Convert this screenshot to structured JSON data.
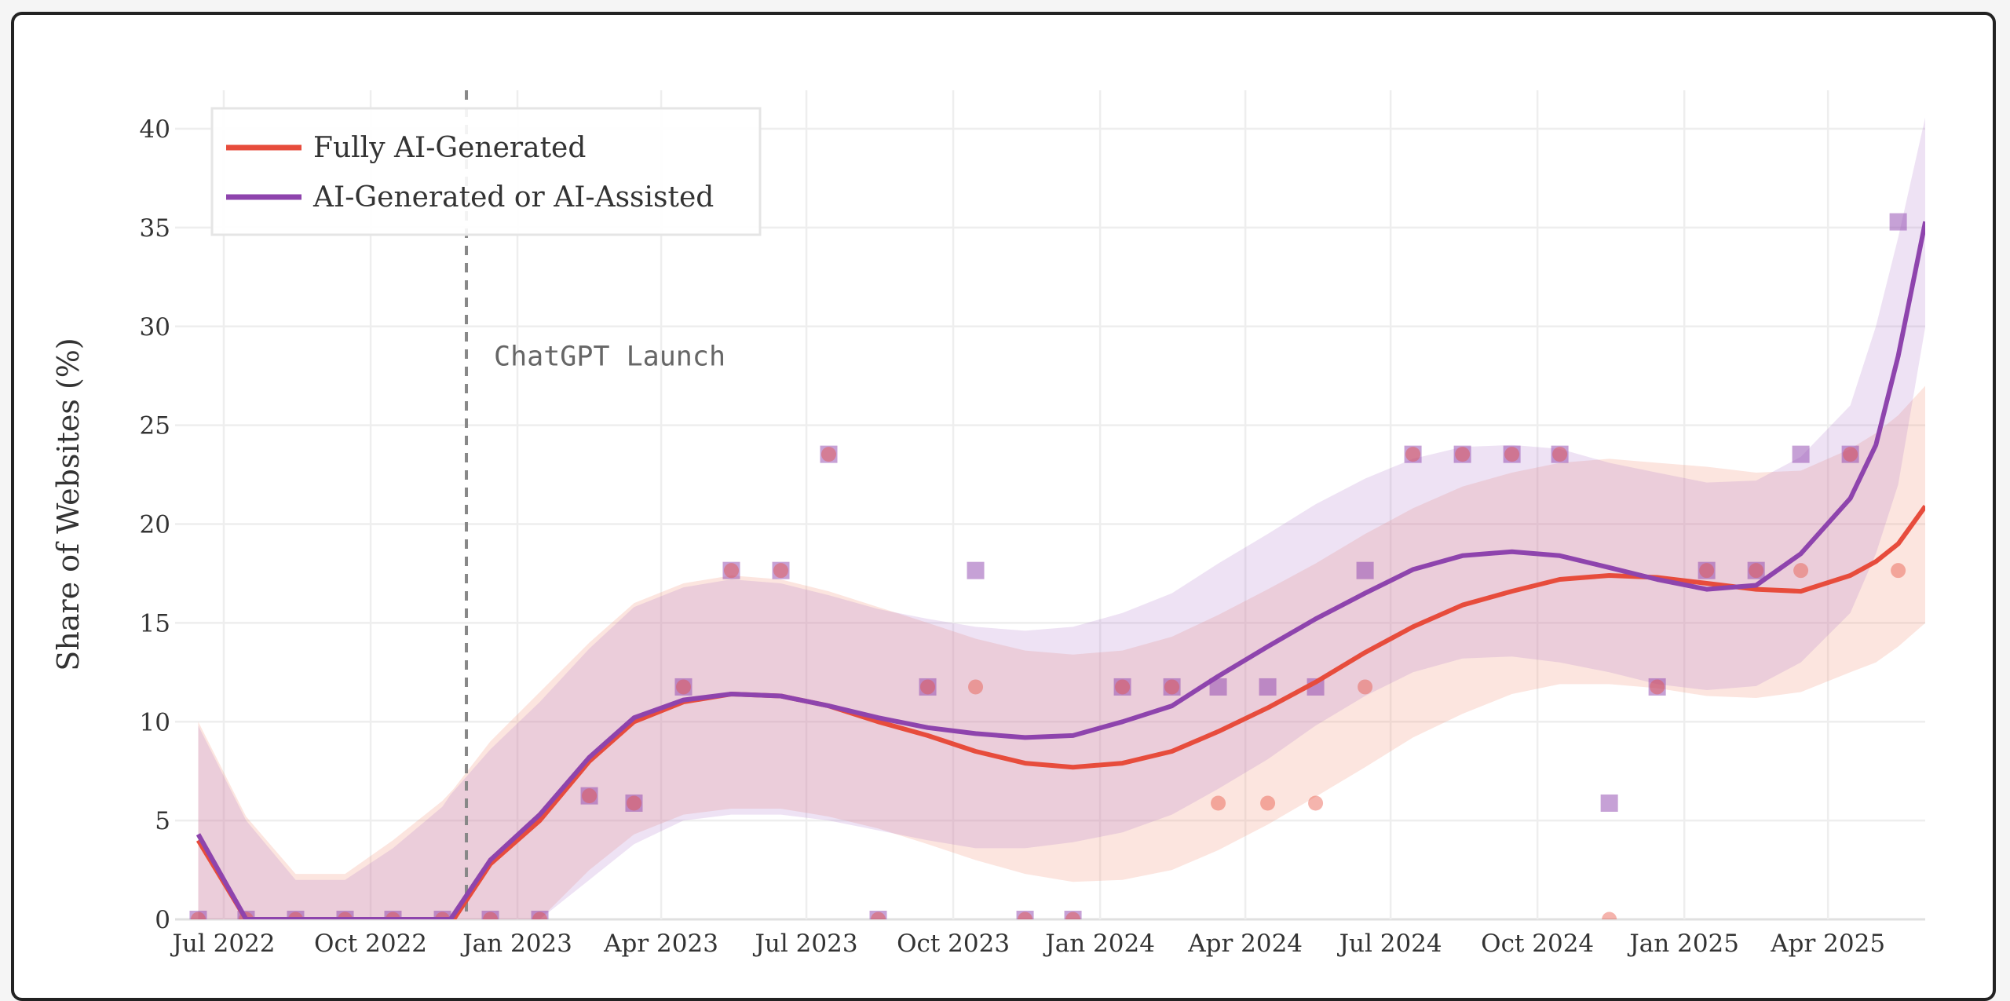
{
  "chart_data": {
    "type": "line",
    "title": "",
    "xlabel": "",
    "ylabel": "Share of Websites (%)",
    "ylim": [
      0,
      40
    ],
    "yticks": [
      0,
      5,
      10,
      15,
      20,
      25,
      30,
      35,
      40
    ],
    "xlim": [
      "2022-06-08",
      "2025-06-25"
    ],
    "xticks": [
      {
        "date": "2022-07-01",
        "label": "Jul 2022"
      },
      {
        "date": "2022-10-01",
        "label": "Oct 2022"
      },
      {
        "date": "2023-01-01",
        "label": "Jan 2023"
      },
      {
        "date": "2023-04-01",
        "label": "Apr 2023"
      },
      {
        "date": "2023-07-01",
        "label": "Jul 2023"
      },
      {
        "date": "2023-10-01",
        "label": "Oct 2023"
      },
      {
        "date": "2024-01-01",
        "label": "Jan 2024"
      },
      {
        "date": "2024-04-01",
        "label": "Apr 2024"
      },
      {
        "date": "2024-07-01",
        "label": "Jul 2024"
      },
      {
        "date": "2024-10-01",
        "label": "Oct 2024"
      },
      {
        "date": "2025-01-01",
        "label": "Jan 2025"
      },
      {
        "date": "2025-04-01",
        "label": "Apr 2025"
      }
    ],
    "grid": true,
    "legend": {
      "placement": "top-left"
    },
    "annotations": [
      {
        "type": "vline",
        "date": "2022-11-30",
        "label": "ChatGPT Launch",
        "label_y": 28.5,
        "color": "#888888",
        "style": "dashed"
      }
    ],
    "x": [
      "2022-06-15",
      "2022-07-15",
      "2022-08-15",
      "2022-09-15",
      "2022-10-15",
      "2022-11-15",
      "2022-12-15",
      "2023-01-15",
      "2023-02-15",
      "2023-03-15",
      "2023-04-15",
      "2023-05-15",
      "2023-06-15",
      "2023-07-15",
      "2023-08-15",
      "2023-09-15",
      "2023-10-15",
      "2023-11-15",
      "2023-12-15",
      "2024-01-15",
      "2024-02-15",
      "2024-03-15",
      "2024-04-15",
      "2024-05-15",
      "2024-06-15",
      "2024-07-15",
      "2024-08-15",
      "2024-09-15",
      "2024-10-15",
      "2024-11-15",
      "2024-12-15",
      "2025-01-15",
      "2025-02-15",
      "2025-03-15",
      "2025-04-15",
      "2025-05-15"
    ],
    "series": [
      {
        "name": "Fully AI-Generated",
        "color": "#e74c3c",
        "marker": "circle",
        "observed": [
          0,
          0,
          0,
          0,
          0,
          0,
          0,
          0,
          6.25,
          5.88,
          11.76,
          17.65,
          17.65,
          23.53,
          0,
          11.76,
          11.76,
          0,
          0,
          11.76,
          11.76,
          5.88,
          5.88,
          5.88,
          11.76,
          23.53,
          23.53,
          23.53,
          23.53,
          0,
          11.76,
          17.65,
          17.65,
          17.65,
          23.53,
          17.65
        ],
        "fit_x": [
          "2022-06-15",
          "2022-07-15",
          "2022-08-15",
          "2022-09-15",
          "2022-10-15",
          "2022-11-15",
          "2022-11-22",
          "2022-12-15",
          "2023-01-15",
          "2023-02-15",
          "2023-03-15",
          "2023-04-15",
          "2023-05-15",
          "2023-06-15",
          "2023-07-15",
          "2023-08-15",
          "2023-09-15",
          "2023-10-15",
          "2023-11-15",
          "2023-12-15",
          "2024-01-15",
          "2024-02-15",
          "2024-03-15",
          "2024-04-15",
          "2024-05-15",
          "2024-06-15",
          "2024-07-15",
          "2024-08-15",
          "2024-09-15",
          "2024-10-15",
          "2024-11-15",
          "2024-12-15",
          "2025-01-15",
          "2025-02-15",
          "2025-03-15",
          "2025-04-15",
          "2025-05-01",
          "2025-05-15",
          "2025-06-01"
        ],
        "fit": [
          4.0,
          0,
          0,
          0,
          0,
          0,
          0,
          2.8,
          5.0,
          8.0,
          10.0,
          11.0,
          11.4,
          11.3,
          10.8,
          10.0,
          9.3,
          8.5,
          7.9,
          7.7,
          7.9,
          8.5,
          9.5,
          10.7,
          12.0,
          13.5,
          14.8,
          15.9,
          16.6,
          17.2,
          17.4,
          17.3,
          17.0,
          16.7,
          16.6,
          17.4,
          18.1,
          19.0,
          20.9
        ],
        "ci_lower": [
          0,
          0,
          0,
          0,
          0,
          0,
          0,
          0,
          0,
          2.5,
          4.3,
          5.3,
          5.6,
          5.6,
          5.2,
          4.6,
          3.8,
          3.0,
          2.3,
          1.9,
          2.0,
          2.5,
          3.5,
          4.8,
          6.2,
          7.7,
          9.2,
          10.4,
          11.4,
          11.9,
          11.9,
          11.7,
          11.3,
          11.2,
          11.5,
          12.5,
          13.0,
          13.8,
          15.0
        ],
        "ci_upper": [
          10.0,
          5.2,
          2.3,
          2.3,
          4.0,
          6.0,
          6.6,
          9.0,
          11.5,
          14.0,
          16.0,
          17.0,
          17.4,
          17.2,
          16.6,
          15.8,
          15.0,
          14.2,
          13.6,
          13.4,
          13.6,
          14.3,
          15.4,
          16.7,
          18.0,
          19.5,
          20.8,
          21.9,
          22.6,
          23.1,
          23.3,
          23.1,
          22.9,
          22.6,
          22.7,
          23.8,
          24.6,
          25.5,
          27.0
        ]
      },
      {
        "name": "AI-Generated or AI-Assisted",
        "color": "#8e44ad",
        "marker": "square",
        "observed": [
          0,
          0,
          0,
          0,
          0,
          0,
          0,
          0,
          6.25,
          5.88,
          11.76,
          17.65,
          17.65,
          23.53,
          0,
          11.76,
          17.65,
          0,
          0,
          11.76,
          11.76,
          11.76,
          11.76,
          11.76,
          17.65,
          23.53,
          23.53,
          23.53,
          23.53,
          5.88,
          11.76,
          17.65,
          17.65,
          23.53,
          23.53,
          35.29
        ],
        "fit_x": [
          "2022-06-15",
          "2022-07-15",
          "2022-08-15",
          "2022-09-15",
          "2022-10-15",
          "2022-11-15",
          "2022-11-20",
          "2022-12-15",
          "2023-01-15",
          "2023-02-15",
          "2023-03-15",
          "2023-04-15",
          "2023-05-15",
          "2023-06-15",
          "2023-07-15",
          "2023-08-15",
          "2023-09-15",
          "2023-10-15",
          "2023-11-15",
          "2023-12-15",
          "2024-01-15",
          "2024-02-15",
          "2024-03-15",
          "2024-04-15",
          "2024-05-15",
          "2024-06-15",
          "2024-07-15",
          "2024-08-15",
          "2024-09-15",
          "2024-10-15",
          "2024-11-15",
          "2024-12-15",
          "2025-01-15",
          "2025-02-15",
          "2025-03-15",
          "2025-04-15",
          "2025-05-01",
          "2025-05-15",
          "2025-06-01"
        ],
        "fit": [
          4.3,
          0,
          0,
          0,
          0,
          0,
          0,
          3.0,
          5.3,
          8.2,
          10.2,
          11.1,
          11.4,
          11.3,
          10.8,
          10.2,
          9.7,
          9.4,
          9.2,
          9.3,
          10.0,
          10.8,
          12.3,
          13.8,
          15.2,
          16.5,
          17.7,
          18.4,
          18.6,
          18.4,
          17.8,
          17.2,
          16.7,
          16.9,
          18.5,
          21.3,
          24.0,
          28.5,
          35.3
        ],
        "ci_lower": [
          0,
          0,
          0,
          0,
          0,
          0,
          0,
          0,
          0,
          2.0,
          3.8,
          5.0,
          5.3,
          5.3,
          5.0,
          4.5,
          4.0,
          3.6,
          3.6,
          3.9,
          4.4,
          5.3,
          6.6,
          8.1,
          9.8,
          11.3,
          12.5,
          13.2,
          13.3,
          13.0,
          12.5,
          11.9,
          11.6,
          11.8,
          13.0,
          15.5,
          18.5,
          22.0,
          30.0
        ],
        "ci_upper": [
          9.8,
          5.0,
          2.0,
          2.0,
          3.6,
          5.7,
          6.3,
          8.6,
          11.0,
          13.7,
          15.8,
          16.8,
          17.2,
          17.0,
          16.4,
          15.7,
          15.2,
          14.8,
          14.6,
          14.8,
          15.5,
          16.5,
          18.0,
          19.5,
          21.0,
          22.3,
          23.3,
          23.9,
          24.0,
          23.8,
          23.1,
          22.6,
          22.1,
          22.2,
          23.4,
          26.0,
          30.0,
          34.5,
          40.6
        ]
      }
    ]
  }
}
